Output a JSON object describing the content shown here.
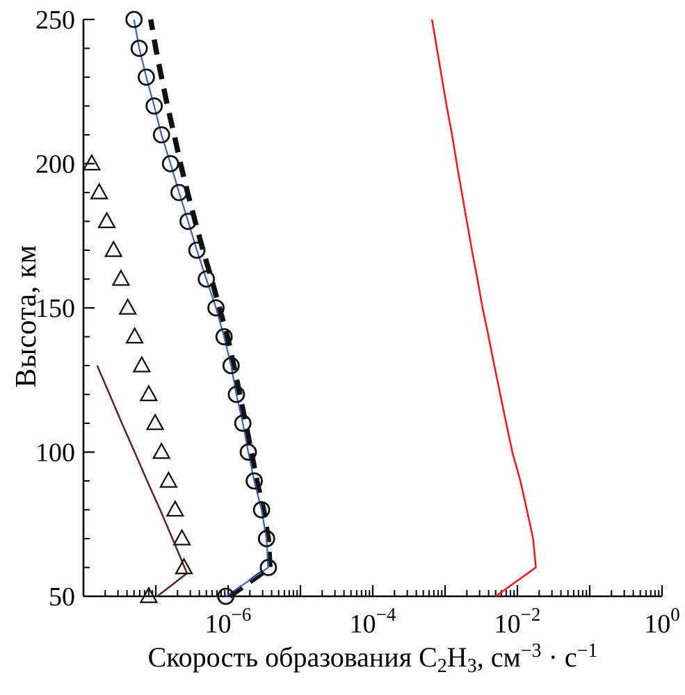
{
  "chart_data": {
    "type": "line",
    "title": "",
    "ylabel": "Высота, км",
    "xlabel_plain": "Скорость образования C2H3, см−3 · с−1",
    "xlabel_parts": [
      {
        "text": "Скорость образования C"
      },
      {
        "text": "2",
        "style": "sub"
      },
      {
        "text": "H"
      },
      {
        "text": "3",
        "style": "sub"
      },
      {
        "text": ", см"
      },
      {
        "text": "−3",
        "style": "sup"
      },
      {
        "text": " · с"
      },
      {
        "text": "−1",
        "style": "sup"
      }
    ],
    "x_axis": {
      "scale": "log10",
      "min_exponent": -8,
      "max_exponent": 0,
      "labeled_exponents": [
        -6,
        -4,
        -2,
        0
      ],
      "mantissa_base": "10"
    },
    "y_axis": {
      "min": 50,
      "max": 250,
      "major_ticks": [
        50,
        100,
        150,
        200,
        250
      ],
      "minor_tick_step": 10
    },
    "grid": false,
    "legend": "none",
    "series": [
      {
        "name": "red-solid-line",
        "color": "#ed1c24",
        "width": 2.6,
        "marker": "none",
        "line": true,
        "points": [
          [
            50,
            0.005
          ],
          [
            60,
            0.018
          ],
          [
            70,
            0.0165
          ],
          [
            80,
            0.0135
          ],
          [
            90,
            0.011
          ],
          [
            100,
            0.0085
          ],
          [
            110,
            0.007
          ],
          [
            120,
            0.0058
          ],
          [
            130,
            0.0048
          ],
          [
            140,
            0.004
          ],
          [
            150,
            0.0033
          ],
          [
            160,
            0.0028
          ],
          [
            170,
            0.00235
          ],
          [
            180,
            0.002
          ],
          [
            190,
            0.0017
          ],
          [
            200,
            0.00145
          ],
          [
            210,
            0.00125
          ],
          [
            220,
            0.00105
          ],
          [
            230,
            0.0009
          ],
          [
            240,
            0.00077
          ],
          [
            250,
            0.00066
          ]
        ]
      },
      {
        "name": "dark-brown-line",
        "color": "#5a2b27",
        "width": 2.6,
        "marker": "none",
        "line": true,
        "points": [
          [
            50,
            1.05e-07
          ],
          [
            58,
            2.7e-07
          ],
          [
            70,
            1.7e-07
          ],
          [
            80,
            1.15e-07
          ],
          [
            90,
            7.6e-08
          ],
          [
            100,
            5.1e-08
          ],
          [
            110,
            3.4e-08
          ],
          [
            120,
            2.3e-08
          ],
          [
            130,
            1.55e-08
          ]
        ]
      },
      {
        "name": "thick-dashed-black-line",
        "color": "#111111",
        "width": 7.5,
        "dash": "22 14",
        "marker": "none",
        "line": true,
        "points": [
          [
            50,
            1.05e-06
          ],
          [
            60,
            3.8e-06
          ],
          [
            70,
            3.6e-06
          ],
          [
            80,
            3.1e-06
          ],
          [
            90,
            2.5e-06
          ],
          [
            100,
            2.1e-06
          ],
          [
            110,
            1.75e-06
          ],
          [
            120,
            1.45e-06
          ],
          [
            130,
            1.2e-06
          ],
          [
            140,
            9.8e-07
          ],
          [
            150,
            7.6e-07
          ],
          [
            160,
            5.9e-07
          ],
          [
            170,
            4.5e-07
          ],
          [
            180,
            3.5e-07
          ],
          [
            190,
            2.75e-07
          ],
          [
            200,
            2.2e-07
          ],
          [
            210,
            1.8e-07
          ],
          [
            220,
            1.45e-07
          ],
          [
            230,
            1.2e-07
          ],
          [
            240,
            1e-07
          ],
          [
            250,
            8.5e-08
          ]
        ]
      },
      {
        "name": "blue-line-with-open-circles",
        "color": "#3f63b5",
        "width": 2.2,
        "marker": "circle",
        "marker_color": "#111111",
        "line": true,
        "points": [
          [
            50,
            9.3e-07
          ],
          [
            60,
            3.6e-06
          ],
          [
            70,
            3.4e-06
          ],
          [
            80,
            2.9e-06
          ],
          [
            90,
            2.3e-06
          ],
          [
            100,
            1.9e-06
          ],
          [
            110,
            1.6e-06
          ],
          [
            120,
            1.3e-06
          ],
          [
            130,
            1.1e-06
          ],
          [
            140,
            8.8e-07
          ],
          [
            150,
            6.8e-07
          ],
          [
            160,
            5e-07
          ],
          [
            170,
            3.7e-07
          ],
          [
            180,
            2.8e-07
          ],
          [
            190,
            2.1e-07
          ],
          [
            200,
            1.6e-07
          ],
          [
            210,
            1.2e-07
          ],
          [
            220,
            9.5e-08
          ],
          [
            230,
            7.4e-08
          ],
          [
            240,
            5.9e-08
          ],
          [
            250,
            5e-08
          ]
        ]
      },
      {
        "name": "open-triangle-markers",
        "color": "#111111",
        "marker": "triangle",
        "marker_color": "#111111",
        "line": false,
        "points": [
          [
            50,
            8e-08
          ],
          [
            60,
            2.45e-07
          ],
          [
            70,
            2.3e-07
          ],
          [
            80,
            1.85e-07
          ],
          [
            90,
            1.5e-07
          ],
          [
            100,
            1.2e-07
          ],
          [
            110,
            9.8e-08
          ],
          [
            120,
            8e-08
          ],
          [
            130,
            6.4e-08
          ],
          [
            140,
            5.1e-08
          ],
          [
            150,
            4.1e-08
          ],
          [
            160,
            3.3e-08
          ],
          [
            170,
            2.6e-08
          ],
          [
            180,
            2.1e-08
          ],
          [
            190,
            1.65e-08
          ],
          [
            200,
            1.3e-08
          ]
        ]
      }
    ]
  }
}
